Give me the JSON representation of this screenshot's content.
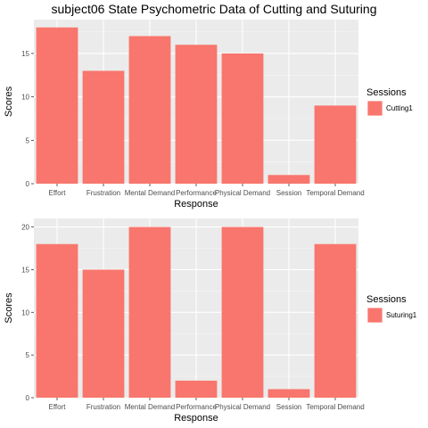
{
  "title": "subject06 State Psychometric Data of Cutting and Suturing",
  "colors": {
    "bar": "#F8766D",
    "panel": "#EBEBEB",
    "grid_major": "#FFFFFF",
    "grid_minor": "#F5F5F5"
  },
  "chart_data": [
    {
      "type": "bar",
      "categories": [
        "Effort",
        "Frustration",
        "Mental Demand",
        "Performance",
        "Physical Demand",
        "Session",
        "Temporal Demand"
      ],
      "values": [
        18,
        13,
        17,
        16,
        15,
        1,
        9
      ],
      "xlabel": "Response",
      "ylabel": "Scores",
      "ylim": [
        0,
        18.9
      ],
      "yticks": [
        0,
        5,
        10,
        15
      ],
      "legend": {
        "title": "Sessions",
        "entries": [
          "Cutting1"
        ],
        "position": "right"
      },
      "grid": true
    },
    {
      "type": "bar",
      "categories": [
        "Effort",
        "Frustration",
        "Mental Demand",
        "Performance",
        "Physical Demand",
        "Session",
        "Temporal Demand"
      ],
      "values": [
        18,
        15,
        20,
        2,
        20,
        1,
        18
      ],
      "xlabel": "Response",
      "ylabel": "Scores",
      "ylim": [
        0,
        21
      ],
      "yticks": [
        0,
        5,
        10,
        15,
        20
      ],
      "legend": {
        "title": "Sessions",
        "entries": [
          "Suturing1"
        ],
        "position": "right"
      },
      "grid": true
    }
  ]
}
